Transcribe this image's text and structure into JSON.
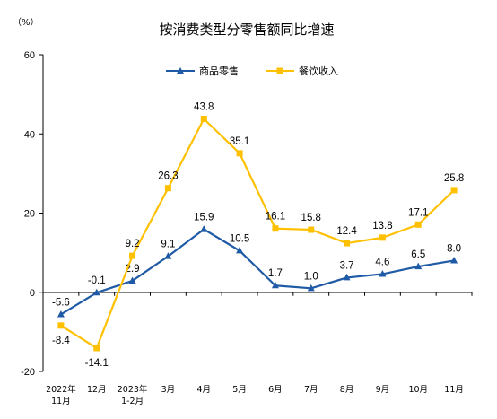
{
  "chart_data": {
    "type": "line",
    "title": "按消费类型分零售额同比增速",
    "unit_label": "（%）",
    "ylim": [
      -20,
      60
    ],
    "yticks": [
      "-20",
      "0",
      "20",
      "40",
      "60"
    ],
    "grid": false,
    "legend_position": "top-center",
    "categories": [
      [
        "2022年",
        "11月"
      ],
      [
        "12月"
      ],
      [
        "2023年",
        "1-2月"
      ],
      [
        "3月"
      ],
      [
        "4月"
      ],
      [
        "5月"
      ],
      [
        "6月"
      ],
      [
        "7月"
      ],
      [
        "8月"
      ],
      [
        "9月"
      ],
      [
        "10月"
      ],
      [
        "11月"
      ]
    ],
    "series": [
      {
        "name": "商品零售",
        "color": "#1f5aa6",
        "marker": "triangle",
        "values": [
          -5.6,
          -0.1,
          2.9,
          9.1,
          15.9,
          10.5,
          1.7,
          1.0,
          3.7,
          4.6,
          6.5,
          8.0
        ],
        "labels": [
          "-5.6",
          "-0.1",
          "2.9",
          "9.1",
          "15.9",
          "10.5",
          "1.7",
          "1.0",
          "3.7",
          "4.6",
          "6.5",
          "8.0"
        ]
      },
      {
        "name": "餐饮收入",
        "color": "#ffc000",
        "marker": "square",
        "values": [
          -8.4,
          -14.1,
          9.2,
          26.3,
          43.8,
          35.1,
          16.1,
          15.8,
          12.4,
          13.8,
          17.1,
          25.8
        ],
        "labels": [
          "-8.4",
          "-14.1",
          "9.2",
          "26.3",
          "43.8",
          "35.1",
          "16.1",
          "15.8",
          "12.4",
          "13.8",
          "17.1",
          "25.8"
        ]
      }
    ]
  }
}
